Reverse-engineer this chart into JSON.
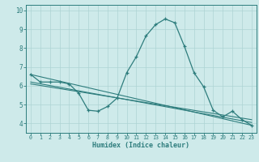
{
  "xlabel": "Humidex (Indice chaleur)",
  "bg_color": "#ceeaea",
  "line_color": "#2e7d7d",
  "grid_color": "#aed4d4",
  "xlim": [
    -0.5,
    23.5
  ],
  "ylim": [
    3.5,
    10.3
  ],
  "yticks": [
    4,
    5,
    6,
    7,
    8,
    9,
    10
  ],
  "xticks": [
    0,
    1,
    2,
    3,
    4,
    5,
    6,
    7,
    8,
    9,
    10,
    11,
    12,
    13,
    14,
    15,
    16,
    17,
    18,
    19,
    20,
    21,
    22,
    23
  ],
  "series1_x": [
    0,
    1,
    2,
    3,
    4,
    5,
    6,
    7,
    8,
    9,
    10,
    11,
    12,
    13,
    14,
    15,
    16,
    17,
    18,
    19,
    20,
    21,
    22,
    23
  ],
  "series1_y": [
    6.6,
    6.2,
    6.2,
    6.2,
    6.1,
    5.6,
    4.7,
    4.65,
    4.9,
    5.35,
    6.7,
    7.55,
    8.65,
    9.25,
    9.55,
    9.35,
    8.1,
    6.7,
    5.95,
    4.7,
    4.35,
    4.65,
    4.2,
    3.9
  ],
  "series2_x": [
    0,
    23
  ],
  "series2_y": [
    6.6,
    3.9
  ],
  "series3_x": [
    0,
    23
  ],
  "series3_y": [
    6.2,
    4.05
  ],
  "series4_x": [
    0,
    23
  ],
  "series4_y": [
    6.1,
    4.2
  ]
}
